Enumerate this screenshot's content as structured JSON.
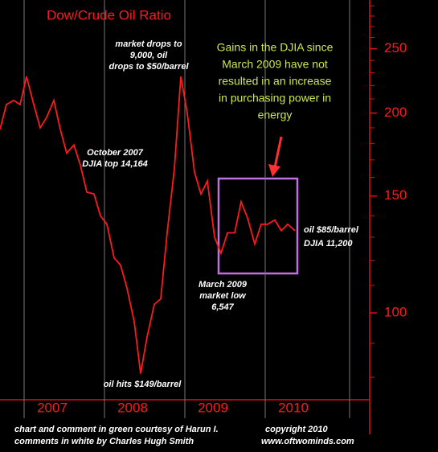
{
  "chart_data": {
    "type": "line",
    "title": "Dow/Crude Oil Ratio",
    "x": [
      2006.7,
      2006.78,
      2006.87,
      2006.95,
      2007.03,
      2007.12,
      2007.2,
      2007.28,
      2007.37,
      2007.45,
      2007.53,
      2007.62,
      2007.7,
      2007.78,
      2007.87,
      2007.95,
      2008.03,
      2008.12,
      2008.2,
      2008.28,
      2008.37,
      2008.45,
      2008.53,
      2008.62,
      2008.7,
      2008.78,
      2008.87,
      2008.95,
      2009.03,
      2009.12,
      2009.2,
      2009.28,
      2009.37,
      2009.45,
      2009.53,
      2009.62,
      2009.7,
      2009.78,
      2009.87,
      2009.95,
      2010.03,
      2010.12,
      2010.2,
      2010.28,
      2010.37
    ],
    "series": [
      {
        "color": "#ff1a1a",
        "values": [
          189,
          206,
          209,
          206,
          227,
          206,
          190,
          197,
          209,
          189,
          174,
          179,
          167,
          152,
          151,
          140,
          136,
          121,
          118,
          109,
          97,
          81,
          92,
          103,
          105,
          132,
          165,
          227,
          200,
          163,
          151,
          158,
          130,
          123,
          132,
          132,
          147,
          139,
          127,
          136,
          136,
          138,
          133,
          136,
          133
        ]
      }
    ],
    "xlim": [
      2006.7,
      2011.3
    ],
    "xticks": [
      2007,
      2008,
      2009,
      2010
    ],
    "ylim": [
      74,
      296
    ],
    "yticks": [
      100,
      150,
      200,
      250
    ],
    "log_y": true,
    "minor_yticks": [
      80,
      90,
      110,
      120,
      130,
      140,
      160,
      170,
      180,
      190,
      210,
      220,
      230,
      240,
      260,
      270,
      280,
      290
    ],
    "annotations": [
      {
        "lines": [
          "market drops to",
          "9,000, oil",
          "drops to $50/barrel"
        ]
      },
      {
        "lines": [
          "October 2007",
          "DJIA top 14,164"
        ]
      },
      {
        "lines": [
          "oil hits $149/barrel"
        ]
      },
      {
        "lines": [
          "March 2009",
          "market low",
          "6,547"
        ]
      },
      {
        "lines": [
          "oil $85/barrel",
          "DJIA 11,200"
        ]
      },
      {
        "lines": [
          "Gains in the DJIA since",
          "March 2009 have not",
          "resulted in an increase",
          "in purchasing power in",
          "energy"
        ]
      }
    ],
    "footer": [
      "chart and comment in green courtesy of Harun I.",
      "copyright 2010",
      "comments in white by Charles Hugh Smith",
      "www.oftwominds.com"
    ]
  }
}
